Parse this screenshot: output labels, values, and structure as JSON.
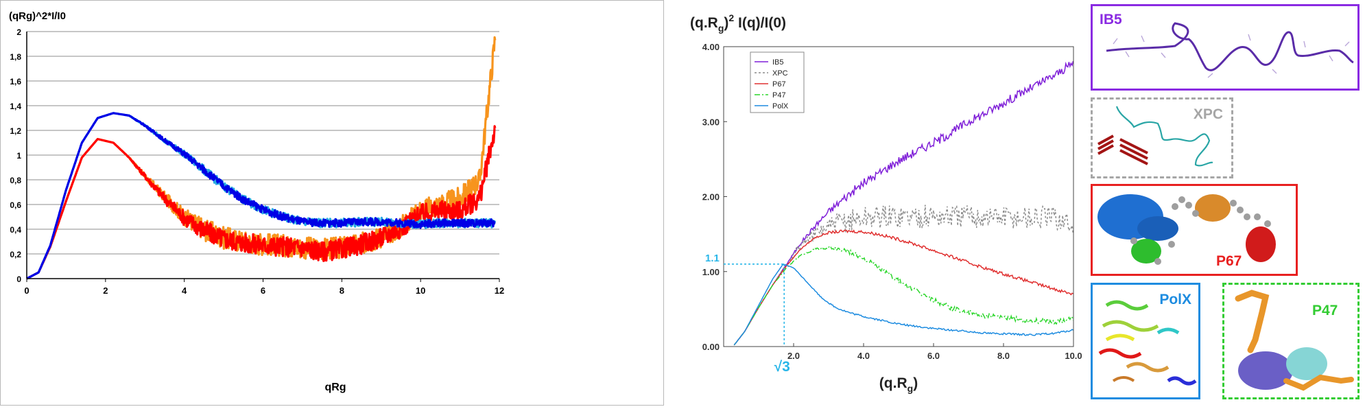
{
  "left_chart": {
    "chart_data": {
      "type": "line",
      "ylabel": "(qRg)^2*I/I0",
      "xlabel": "qRg",
      "xlim": [
        0,
        12
      ],
      "ylim": [
        0,
        2
      ],
      "x_ticks": [
        "0",
        "2",
        "4",
        "6",
        "8",
        "10",
        "12"
      ],
      "y_ticks": [
        "0",
        "0,2",
        "0,4",
        "0,6",
        "0,8",
        "1",
        "1,2",
        "1,4",
        "1,6",
        "1,8",
        "2"
      ],
      "grid": "horizontal",
      "series": [
        {
          "color": "#F7941D",
          "x": [
            0,
            0.3,
            0.6,
            1,
            1.4,
            1.8,
            2.2,
            2.6,
            3,
            3.5,
            4,
            4.5,
            5,
            5.5,
            6,
            6.5,
            7,
            7.5,
            8,
            8.5,
            9,
            9.5,
            10,
            10.5,
            11,
            11.5,
            11.9
          ],
          "y": [
            0,
            0.05,
            0.26,
            0.63,
            0.98,
            1.13,
            1.1,
            0.98,
            0.83,
            0.66,
            0.5,
            0.4,
            0.33,
            0.3,
            0.28,
            0.27,
            0.25,
            0.24,
            0.25,
            0.28,
            0.34,
            0.42,
            0.55,
            0.6,
            0.65,
            0.8,
            1.97
          ],
          "noise": 0.09
        },
        {
          "color": "#FF0000",
          "x": [
            0,
            0.3,
            0.6,
            1,
            1.4,
            1.8,
            2.2,
            2.6,
            3,
            3.5,
            4,
            4.5,
            5,
            5.5,
            6,
            6.5,
            7,
            7.5,
            8,
            8.5,
            9,
            9.5,
            10,
            10.5,
            11,
            11.5,
            11.9
          ],
          "y": [
            0,
            0.05,
            0.26,
            0.63,
            0.98,
            1.13,
            1.1,
            0.98,
            0.83,
            0.65,
            0.49,
            0.39,
            0.32,
            0.29,
            0.27,
            0.26,
            0.25,
            0.22,
            0.24,
            0.28,
            0.33,
            0.41,
            0.52,
            0.55,
            0.55,
            0.65,
            1.23
          ],
          "noise": 0.08
        },
        {
          "color": "#29ABE2",
          "x": [
            0,
            0.3,
            0.6,
            1,
            1.4,
            1.8,
            2.2,
            2.6,
            3,
            3.5,
            4,
            4.5,
            5,
            5.5,
            6,
            6.5,
            7,
            7.5,
            8,
            8.5,
            9,
            9.5,
            10,
            10.5,
            11,
            11.5,
            11.9
          ],
          "y": [
            0,
            0.05,
            0.27,
            0.72,
            1.1,
            1.3,
            1.34,
            1.32,
            1.24,
            1.12,
            1.01,
            0.88,
            0.75,
            0.64,
            0.56,
            0.5,
            0.46,
            0.45,
            0.45,
            0.46,
            0.46,
            0.45,
            0.44,
            0.45,
            0.45,
            0.45,
            0.45
          ],
          "noise": 0.035
        },
        {
          "color": "#0000E6",
          "x": [
            0,
            0.3,
            0.6,
            1,
            1.4,
            1.8,
            2.2,
            2.6,
            3,
            3.5,
            4,
            4.5,
            5,
            5.5,
            6,
            6.5,
            7,
            7.5,
            8,
            8.5,
            9,
            9.5,
            10,
            10.5,
            11,
            11.5,
            11.9
          ],
          "y": [
            0,
            0.05,
            0.27,
            0.72,
            1.1,
            1.3,
            1.34,
            1.32,
            1.24,
            1.12,
            1.01,
            0.88,
            0.75,
            0.64,
            0.56,
            0.5,
            0.46,
            0.45,
            0.45,
            0.46,
            0.46,
            0.45,
            0.44,
            0.45,
            0.45,
            0.45,
            0.45
          ],
          "noise": 0.03
        }
      ]
    }
  },
  "right_chart": {
    "ylabel_html_parts": [
      "(q.R",
      "g",
      ")",
      "2",
      " I(q)/I(0)"
    ],
    "xlabel_parts": [
      "(q.R",
      "g",
      ")"
    ],
    "annotation_y": "1.1",
    "annotation_x": "√3",
    "chart_data": {
      "type": "line",
      "xlim": [
        0,
        10
      ],
      "ylim": [
        0,
        4
      ],
      "x_ticks": [
        "2.0",
        "4.0",
        "6.0",
        "8.0",
        "10.0"
      ],
      "x_tick_values": [
        2,
        4,
        6,
        8,
        10
      ],
      "y_ticks": [
        "0.00",
        "1.00",
        "2.00",
        "3.00",
        "4.00"
      ],
      "y_tick_values": [
        0,
        1,
        2,
        3,
        4
      ],
      "legend_position": "top-left",
      "series": [
        {
          "name": "IB5",
          "color": "#7F1FD8",
          "dash": "",
          "x": [
            0.3,
            0.6,
            1,
            1.4,
            1.8,
            2.2,
            2.6,
            3,
            3.5,
            4,
            4.5,
            5,
            5.5,
            6,
            6.5,
            7,
            7.5,
            8,
            8.5,
            9,
            9.5,
            10
          ],
          "y": [
            0.02,
            0.2,
            0.52,
            0.82,
            1.1,
            1.38,
            1.6,
            1.8,
            2.0,
            2.18,
            2.33,
            2.48,
            2.6,
            2.72,
            2.85,
            3.0,
            3.12,
            3.25,
            3.38,
            3.5,
            3.63,
            3.78
          ],
          "noise": 0.06
        },
        {
          "name": "XPC",
          "color": "#8C8C8C",
          "dash": "3,3",
          "x": [
            0.3,
            0.6,
            1,
            1.4,
            1.8,
            2.2,
            2.6,
            3,
            3.5,
            4,
            4.5,
            5,
            6,
            7,
            8,
            9,
            9.5,
            10
          ],
          "y": [
            0.02,
            0.2,
            0.52,
            0.82,
            1.1,
            1.35,
            1.5,
            1.6,
            1.68,
            1.72,
            1.74,
            1.74,
            1.74,
            1.74,
            1.73,
            1.72,
            1.72,
            1.6
          ],
          "noise": 0.16
        },
        {
          "name": "P67",
          "color": "#E03030",
          "dash": "",
          "x": [
            0.3,
            0.6,
            1,
            1.4,
            1.8,
            2.2,
            2.6,
            3,
            3.5,
            4,
            4.5,
            5,
            5.5,
            6,
            6.5,
            7,
            7.5,
            8,
            8.5,
            9,
            9.5,
            10
          ],
          "y": [
            0.02,
            0.2,
            0.52,
            0.82,
            1.08,
            1.3,
            1.45,
            1.52,
            1.54,
            1.53,
            1.49,
            1.43,
            1.36,
            1.28,
            1.2,
            1.12,
            1.04,
            0.97,
            0.9,
            0.83,
            0.76,
            0.7
          ],
          "noise": 0.02
        },
        {
          "name": "P47",
          "color": "#2BD62B",
          "dash": "8,3,2,3",
          "x": [
            0.3,
            0.6,
            1,
            1.4,
            1.8,
            2.2,
            2.6,
            3,
            3.5,
            4,
            4.5,
            5,
            5.5,
            6,
            6.5,
            7,
            7.5,
            8,
            8.5,
            9,
            9.5,
            10
          ],
          "y": [
            0.02,
            0.2,
            0.52,
            0.82,
            1.05,
            1.22,
            1.3,
            1.32,
            1.28,
            1.18,
            1.03,
            0.88,
            0.74,
            0.62,
            0.52,
            0.45,
            0.41,
            0.38,
            0.36,
            0.34,
            0.33,
            0.38
          ],
          "noise": 0.035
        },
        {
          "name": "PolX",
          "color": "#1E8CE0",
          "dash": "",
          "x": [
            0.3,
            0.6,
            1,
            1.4,
            1.7,
            2,
            2.4,
            2.8,
            3.2,
            3.6,
            4,
            4.5,
            5,
            5.5,
            6,
            6.5,
            7,
            7.5,
            8,
            8.5,
            9,
            9.5,
            10
          ],
          "y": [
            0.02,
            0.2,
            0.55,
            0.9,
            1.1,
            1.05,
            0.85,
            0.65,
            0.52,
            0.45,
            0.4,
            0.35,
            0.3,
            0.27,
            0.24,
            0.22,
            0.2,
            0.18,
            0.17,
            0.16,
            0.16,
            0.18,
            0.22
          ],
          "noise": 0.012
        }
      ]
    }
  },
  "structures": {
    "IB5": {
      "label": "IB5",
      "color": "#8A2BE2"
    },
    "XPC": {
      "label": "XPC",
      "color": "#A6A6A6"
    },
    "P67": {
      "label": "P67",
      "color": "#E82020"
    },
    "PolX": {
      "label": "PolX",
      "color": "#1E8CE0"
    },
    "P47": {
      "label": "P47",
      "color": "#33CC33"
    }
  }
}
